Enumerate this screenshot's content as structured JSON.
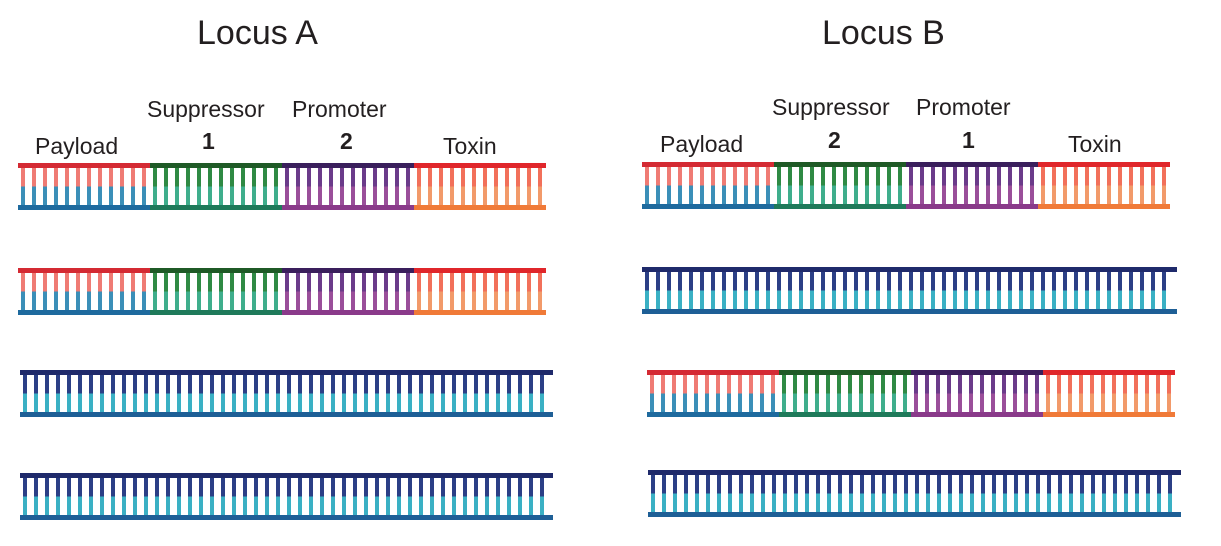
{
  "locus_a": {
    "title": "Locus A",
    "labels": {
      "payload": "Payload",
      "suppressor": "Suppressor",
      "promoter": "Promoter",
      "toxin": "Toxin"
    },
    "suppressor_number": "1",
    "promoter_number": "2"
  },
  "locus_b": {
    "title": "Locus B",
    "labels": {
      "payload": "Payload",
      "suppressor": "Suppressor",
      "promoter": "Promoter",
      "toxin": "Toxin"
    },
    "suppressor_number": "2",
    "promoter_number": "1"
  },
  "colors": {
    "payload": {
      "top": "#d42a33",
      "upper": "#ef7b74",
      "lower": "#3b8fb8",
      "bottom": "#1e6a9e"
    },
    "suppressor": {
      "top": "#1f5a26",
      "upper": "#2f8a44",
      "lower": "#3fae8c",
      "bottom": "#1f7a5a"
    },
    "promoter": {
      "top": "#3a1f5c",
      "upper": "#6b3b8a",
      "lower": "#9a4f9a",
      "bottom": "#8a3a8a"
    },
    "toxin": {
      "top": "#e0262b",
      "upper": "#f2705a",
      "lower": "#f29a6a",
      "bottom": "#f07a38"
    },
    "plain": {
      "top": "#1f2a6b",
      "upper": "#2b3f86",
      "lower": "#3ab0c4",
      "bottom": "#1e5f96"
    }
  },
  "strands": [
    {
      "id": "a1",
      "type": "cassette",
      "order": [
        "payload",
        "suppressor",
        "promoter",
        "toxin"
      ]
    },
    {
      "id": "a2",
      "type": "cassette",
      "order": [
        "payload",
        "suppressor",
        "promoter",
        "toxin"
      ]
    },
    {
      "id": "a3",
      "type": "plain"
    },
    {
      "id": "a4",
      "type": "plain"
    },
    {
      "id": "b1",
      "type": "cassette",
      "order": [
        "payload",
        "suppressor",
        "promoter",
        "toxin"
      ]
    },
    {
      "id": "b2",
      "type": "plain"
    },
    {
      "id": "b3",
      "type": "cassette",
      "order": [
        "payload",
        "suppressor",
        "promoter",
        "toxin"
      ]
    },
    {
      "id": "b4",
      "type": "plain"
    }
  ]
}
